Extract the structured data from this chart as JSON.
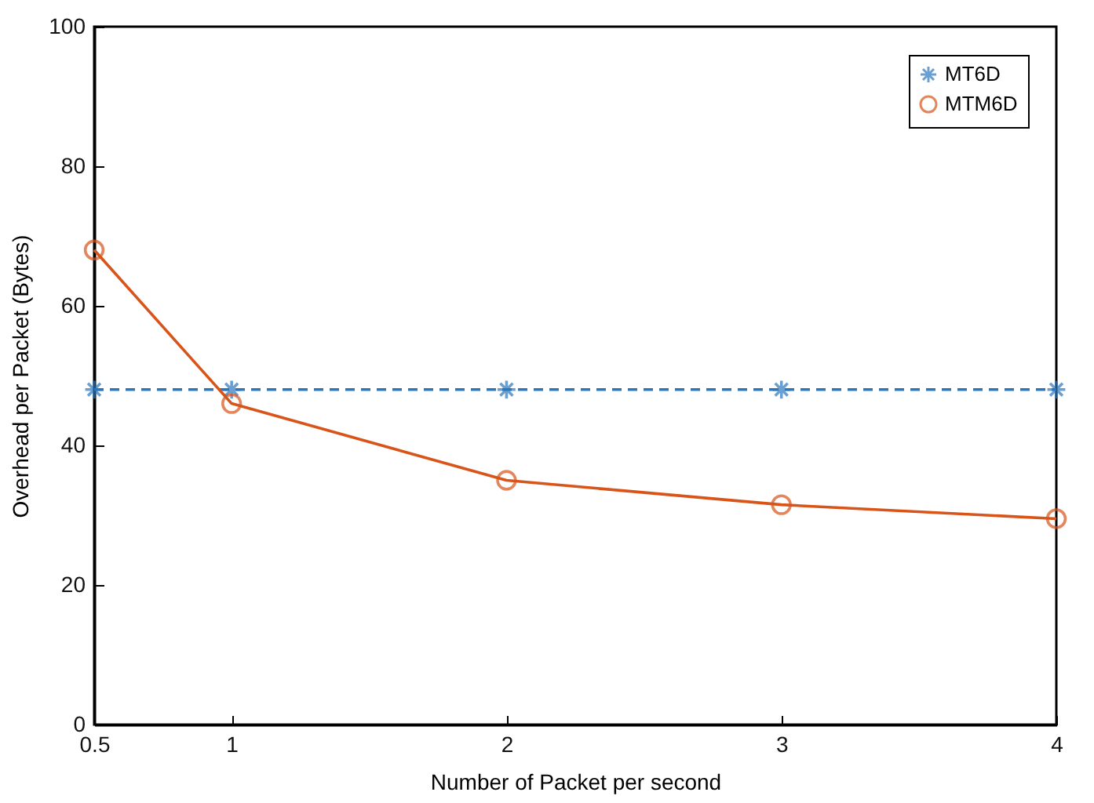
{
  "chart_data": {
    "type": "line",
    "xlabel": "Number of Packet per second",
    "ylabel": "Overhead per Packet (Bytes)",
    "x": [
      0.5,
      1,
      2,
      3,
      4
    ],
    "series": [
      {
        "name": "MT6D",
        "color": "#2a77be",
        "marker": "cross",
        "line_style": "dashed",
        "values": [
          48,
          48,
          48,
          48,
          48
        ]
      },
      {
        "name": "MTM6D",
        "color": "#d95419",
        "marker": "circle",
        "line_style": "solid",
        "values": [
          68,
          46,
          35,
          31.5,
          29.5
        ]
      }
    ],
    "xlim": [
      0.5,
      4
    ],
    "xticks": [
      0.5,
      1,
      2,
      3,
      4
    ],
    "ylim": [
      0,
      100
    ],
    "yticks": [
      0,
      20,
      40,
      60,
      80,
      100
    ],
    "grid": false,
    "legend": "top right"
  }
}
